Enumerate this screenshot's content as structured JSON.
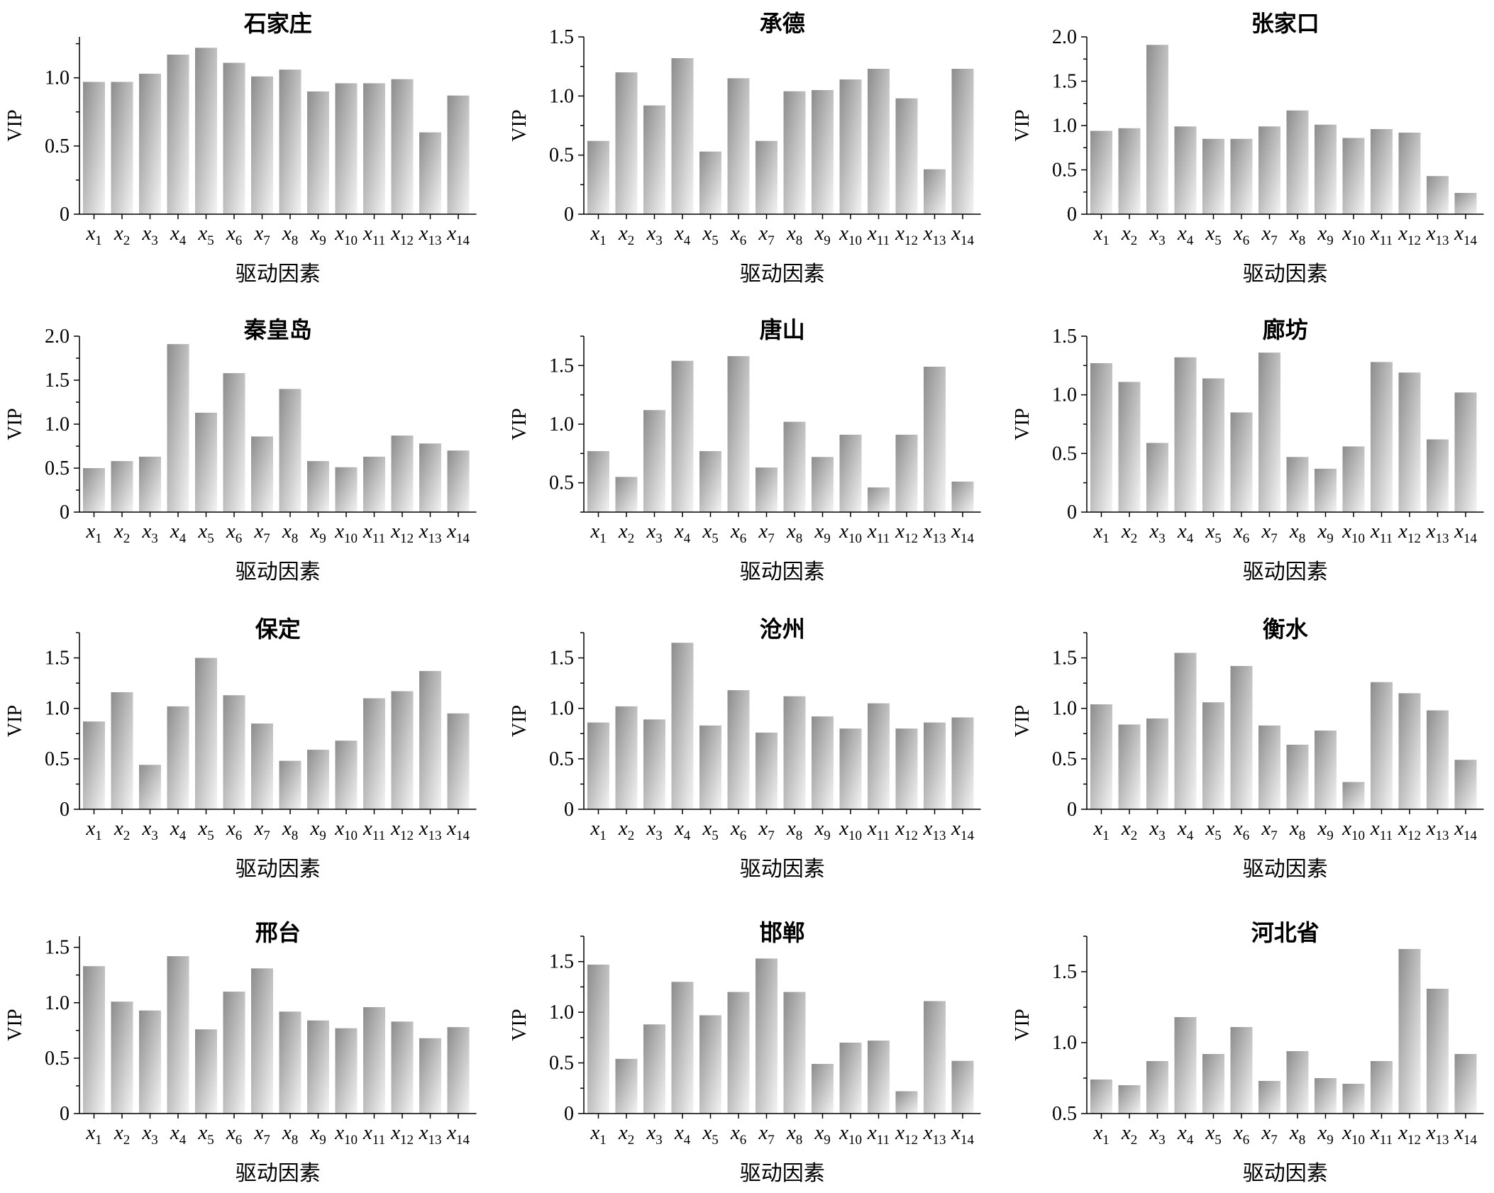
{
  "colors": {
    "bar_dark": "#8c8c8c",
    "bar_light": "#f4f4f4",
    "axis": "#000000"
  },
  "chart_data": [
    {
      "type": "bar",
      "title": "石家庄",
      "xlabel": "驱动因素",
      "ylabel": "VIP",
      "categories": [
        "x1",
        "x2",
        "x3",
        "x4",
        "x5",
        "x6",
        "x7",
        "x8",
        "x9",
        "x10",
        "x11",
        "x12",
        "x13",
        "x14"
      ],
      "values": [
        0.97,
        0.97,
        1.03,
        1.17,
        1.22,
        1.11,
        1.01,
        1.06,
        0.9,
        0.96,
        0.96,
        0.99,
        0.6,
        0.87
      ],
      "ylim": [
        0,
        1.3
      ],
      "yticks": [
        0,
        0.5,
        1.0
      ],
      "ytick_labels": [
        "0",
        "0.5",
        "1.0"
      ]
    },
    {
      "type": "bar",
      "title": "承德",
      "xlabel": "驱动因素",
      "ylabel": "VIP",
      "categories": [
        "x1",
        "x2",
        "x3",
        "x4",
        "x5",
        "x6",
        "x7",
        "x8",
        "x9",
        "x10",
        "x11",
        "x12",
        "x13",
        "x14"
      ],
      "values": [
        0.62,
        1.2,
        0.92,
        1.32,
        0.53,
        1.15,
        0.62,
        1.04,
        1.05,
        1.14,
        1.23,
        0.98,
        0.38,
        1.23
      ],
      "ylim": [
        0,
        1.5
      ],
      "yticks": [
        0,
        0.5,
        1.0,
        1.5
      ],
      "ytick_labels": [
        "0",
        "0.5",
        "1.0",
        "1.5"
      ]
    },
    {
      "type": "bar",
      "title": "张家口",
      "xlabel": "驱动因素",
      "ylabel": "VIP",
      "categories": [
        "x1",
        "x2",
        "x3",
        "x4",
        "x5",
        "x6",
        "x7",
        "x8",
        "x9",
        "x10",
        "x11",
        "x12",
        "x13",
        "x14"
      ],
      "values": [
        0.94,
        0.97,
        1.91,
        0.99,
        0.85,
        0.85,
        0.99,
        1.17,
        1.01,
        0.86,
        0.96,
        0.92,
        0.43,
        0.24
      ],
      "ylim": [
        0,
        2.0
      ],
      "yticks": [
        0,
        0.5,
        1.0,
        1.5,
        2.0
      ],
      "ytick_labels": [
        "0",
        "0.5",
        "1.0",
        "1.5",
        "2.0"
      ]
    },
    {
      "type": "bar",
      "title": "秦皇岛",
      "xlabel": "驱动因素",
      "ylabel": "VIP",
      "categories": [
        "x1",
        "x2",
        "x3",
        "x4",
        "x5",
        "x6",
        "x7",
        "x8",
        "x9",
        "x10",
        "x11",
        "x12",
        "x13",
        "x14"
      ],
      "values": [
        0.5,
        0.58,
        0.63,
        1.91,
        1.13,
        1.58,
        0.86,
        1.4,
        0.58,
        0.51,
        0.63,
        0.87,
        0.78,
        0.7
      ],
      "ylim": [
        0,
        2.0
      ],
      "yticks": [
        0,
        0.5,
        1.0,
        1.5,
        2.0
      ],
      "ytick_labels": [
        "0",
        "0.5",
        "1.0",
        "1.5",
        "2.0"
      ]
    },
    {
      "type": "bar",
      "title": "唐山",
      "xlabel": "驱动因素",
      "ylabel": "VIP",
      "categories": [
        "x1",
        "x2",
        "x3",
        "x4",
        "x5",
        "x6",
        "x7",
        "x8",
        "x9",
        "x10",
        "x11",
        "x12",
        "x13",
        "x14"
      ],
      "values": [
        0.77,
        0.55,
        1.12,
        1.54,
        0.77,
        1.58,
        0.63,
        1.02,
        0.72,
        0.91,
        0.46,
        0.91,
        1.49,
        0.51
      ],
      "ylim": [
        0.25,
        1.75
      ],
      "yticks": [
        0.5,
        1.0,
        1.5
      ],
      "ytick_labels": [
        "0.5",
        "1.0",
        "1.5"
      ]
    },
    {
      "type": "bar",
      "title": "廊坊",
      "xlabel": "驱动因素",
      "ylabel": "VIP",
      "categories": [
        "x1",
        "x2",
        "x3",
        "x4",
        "x5",
        "x6",
        "x7",
        "x8",
        "x9",
        "x10",
        "x11",
        "x12",
        "x13",
        "x14"
      ],
      "values": [
        1.27,
        1.11,
        0.59,
        1.32,
        1.14,
        0.85,
        1.36,
        0.47,
        0.37,
        0.56,
        1.28,
        1.19,
        0.62,
        1.02
      ],
      "ylim": [
        0,
        1.5
      ],
      "yticks": [
        0,
        0.5,
        1.0,
        1.5
      ],
      "ytick_labels": [
        "0",
        "0.5",
        "1.0",
        "1.5"
      ]
    },
    {
      "type": "bar",
      "title": "保定",
      "xlabel": "驱动因素",
      "ylabel": "VIP",
      "categories": [
        "x1",
        "x2",
        "x3",
        "x4",
        "x5",
        "x6",
        "x7",
        "x8",
        "x9",
        "x10",
        "x11",
        "x12",
        "x13",
        "x14"
      ],
      "values": [
        0.87,
        1.16,
        0.44,
        1.02,
        1.5,
        1.13,
        0.85,
        0.48,
        0.59,
        0.68,
        1.1,
        1.17,
        1.37,
        0.95
      ],
      "ylim": [
        0,
        1.75
      ],
      "yticks": [
        0,
        0.5,
        1.0,
        1.5
      ],
      "ytick_labels": [
        "0",
        "0.5",
        "1.0",
        "1.5"
      ]
    },
    {
      "type": "bar",
      "title": "沧州",
      "xlabel": "驱动因素",
      "ylabel": "VIP",
      "categories": [
        "x1",
        "x2",
        "x3",
        "x4",
        "x5",
        "x6",
        "x7",
        "x8",
        "x9",
        "x10",
        "x11",
        "x12",
        "x13",
        "x14"
      ],
      "values": [
        0.86,
        1.02,
        0.89,
        1.65,
        0.83,
        1.18,
        0.76,
        1.12,
        0.92,
        0.8,
        1.05,
        0.8,
        0.86,
        0.91
      ],
      "ylim": [
        0,
        1.75
      ],
      "yticks": [
        0,
        0.5,
        1.0,
        1.5
      ],
      "ytick_labels": [
        "0",
        "0.5",
        "1.0",
        "1.5"
      ]
    },
    {
      "type": "bar",
      "title": "衡水",
      "xlabel": "驱动因素",
      "ylabel": "VIP",
      "categories": [
        "x1",
        "x2",
        "x3",
        "x4",
        "x5",
        "x6",
        "x7",
        "x8",
        "x9",
        "x10",
        "x11",
        "x12",
        "x13",
        "x14"
      ],
      "values": [
        1.04,
        0.84,
        0.9,
        1.55,
        1.06,
        1.42,
        0.83,
        0.64,
        0.78,
        0.27,
        1.26,
        1.15,
        0.98,
        0.49
      ],
      "ylim": [
        0,
        1.75
      ],
      "yticks": [
        0,
        0.5,
        1.0,
        1.5
      ],
      "ytick_labels": [
        "0",
        "0.5",
        "1.0",
        "1.5"
      ]
    },
    {
      "type": "bar",
      "title": "邢台",
      "xlabel": "驱动因素",
      "ylabel": "VIP",
      "categories": [
        "x1",
        "x2",
        "x3",
        "x4",
        "x5",
        "x6",
        "x7",
        "x8",
        "x9",
        "x10",
        "x11",
        "x12",
        "x13",
        "x14"
      ],
      "values": [
        1.33,
        1.01,
        0.93,
        1.42,
        0.76,
        1.1,
        1.31,
        0.92,
        0.84,
        0.77,
        0.96,
        0.83,
        0.68,
        0.78
      ],
      "ylim": [
        0,
        1.6
      ],
      "yticks": [
        0,
        0.5,
        1.0,
        1.5
      ],
      "ytick_labels": [
        "0",
        "0.5",
        "1.0",
        "1.5"
      ]
    },
    {
      "type": "bar",
      "title": "邯郸",
      "xlabel": "驱动因素",
      "ylabel": "VIP",
      "categories": [
        "x1",
        "x2",
        "x3",
        "x4",
        "x5",
        "x6",
        "x7",
        "x8",
        "x9",
        "x10",
        "x11",
        "x12",
        "x13",
        "x14"
      ],
      "values": [
        1.47,
        0.54,
        0.88,
        1.3,
        0.97,
        1.2,
        1.53,
        1.2,
        0.49,
        0.7,
        0.72,
        0.22,
        1.11,
        0.52
      ],
      "ylim": [
        0,
        1.75
      ],
      "yticks": [
        0,
        0.5,
        1.0,
        1.5
      ],
      "ytick_labels": [
        "0",
        "0.5",
        "1.0",
        "1.5"
      ]
    },
    {
      "type": "bar",
      "title": "河北省",
      "xlabel": "驱动因素",
      "ylabel": "VIP",
      "categories": [
        "x1",
        "x2",
        "x3",
        "x4",
        "x5",
        "x6",
        "x7",
        "x8",
        "x9",
        "x10",
        "x11",
        "x12",
        "x13",
        "x14"
      ],
      "values": [
        0.74,
        0.7,
        0.87,
        1.18,
        0.92,
        1.11,
        0.73,
        0.94,
        0.75,
        0.71,
        0.87,
        1.66,
        1.38,
        0.92
      ],
      "ylim": [
        0.5,
        1.75
      ],
      "yticks": [
        0.5,
        1.0,
        1.5
      ],
      "ytick_labels": [
        "0.5",
        "1.0",
        "1.5"
      ]
    }
  ]
}
